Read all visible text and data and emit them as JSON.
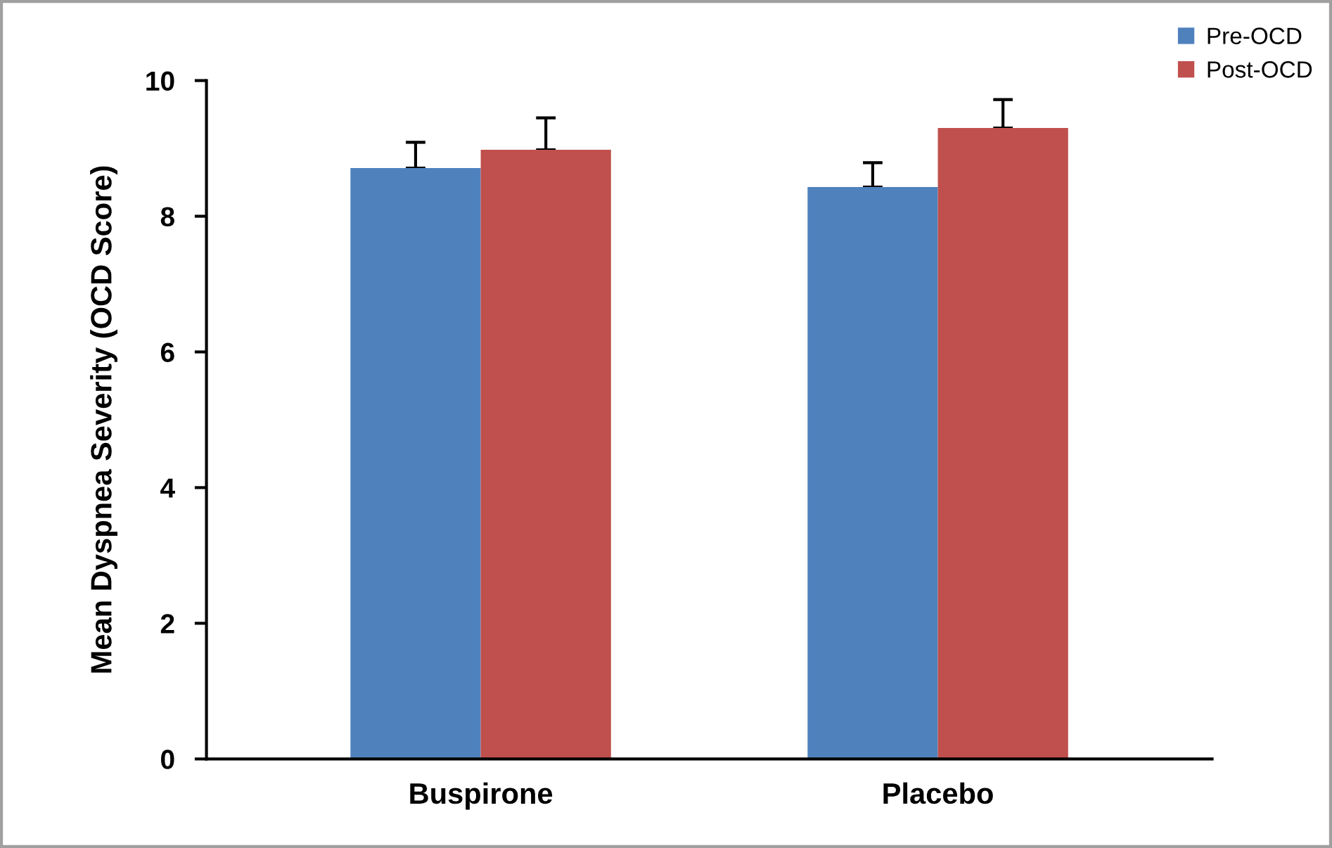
{
  "chart_data": {
    "type": "bar",
    "ylabel": "Mean Dyspnea Severity (OCD Score)",
    "categories": [
      "Buspirone",
      "Placebo"
    ],
    "series": [
      {
        "name": "Pre-OCD",
        "color": "#4f81bd",
        "values": [
          8.71,
          8.43
        ],
        "errors": [
          [
            8.71,
            9.09
          ],
          [
            8.43,
            8.79
          ]
        ]
      },
      {
        "name": "Post-OCD",
        "color": "#c0504d",
        "values": [
          8.98,
          9.3
        ],
        "errors": [
          [
            8.98,
            9.45
          ],
          [
            9.3,
            9.72
          ]
        ]
      }
    ],
    "ylim": [
      0,
      10
    ],
    "yticks": [
      0,
      2,
      4,
      6,
      8,
      10
    ],
    "grid": false,
    "legend": "top right"
  }
}
